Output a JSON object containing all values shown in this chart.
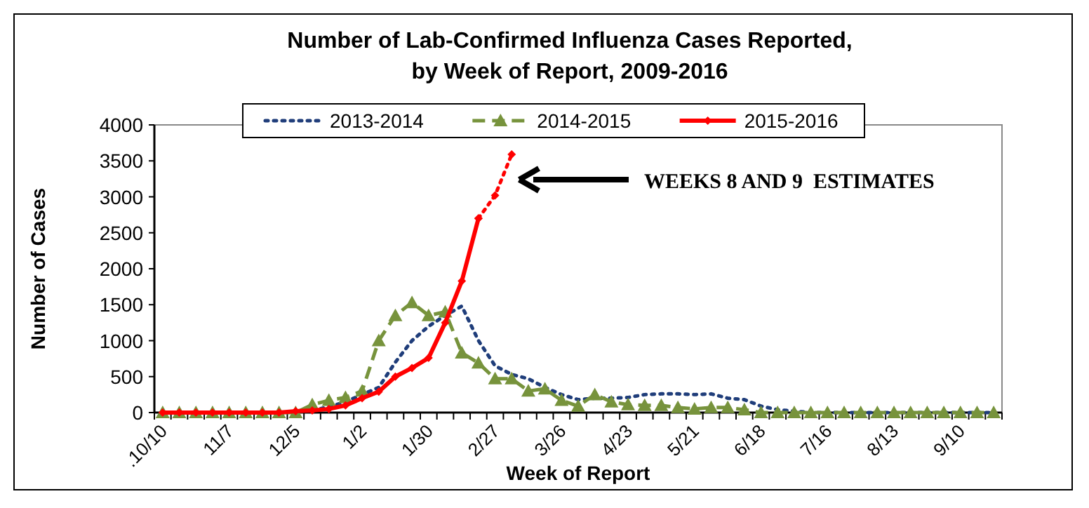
{
  "chart_data": {
    "type": "line",
    "title": "Number of Lab-Confirmed Influenza Cases Reported,\nby Week of Report, 2009-2016",
    "xlabel": "Week of Report",
    "ylabel": "Number of Cases",
    "categories": [
      ".10/10",
      null,
      null,
      null,
      "11/7",
      null,
      null,
      null,
      "12/5",
      null,
      null,
      null,
      "1/2",
      null,
      null,
      null,
      "1/30",
      null,
      null,
      null,
      "2/27",
      null,
      null,
      null,
      "3/26",
      null,
      null,
      null,
      "4/23",
      null,
      null,
      null,
      "5/21",
      null,
      null,
      null,
      "6/18",
      null,
      null,
      null,
      "7/16",
      null,
      null,
      null,
      "8/13",
      null,
      null,
      null,
      "9/10",
      null,
      null
    ],
    "ylim": [
      0,
      4000
    ],
    "yticks": [
      0,
      500,
      1000,
      1500,
      2000,
      2500,
      3000,
      3500,
      4000
    ],
    "grid": false,
    "legend": "top",
    "series": [
      {
        "name": "2013-2014",
        "color": "#1f3d7a",
        "line_style": "dotted",
        "marker": "none",
        "values": [
          null,
          null,
          null,
          null,
          null,
          null,
          null,
          null,
          20,
          30,
          80,
          150,
          250,
          350,
          700,
          1000,
          1200,
          1350,
          1480,
          1000,
          650,
          530,
          470,
          350,
          250,
          180,
          200,
          200,
          210,
          250,
          260,
          260,
          250,
          260,
          200,
          180,
          90,
          40,
          20,
          0,
          0,
          0,
          0,
          0,
          0,
          0,
          0,
          0,
          0,
          0,
          0
        ]
      },
      {
        "name": "2014-2015",
        "color": "#77933c",
        "line_style": "dashed",
        "marker": "triangle",
        "values": [
          0,
          0,
          0,
          0,
          0,
          0,
          0,
          0,
          0,
          110,
          170,
          210,
          300,
          1000,
          1350,
          1530,
          1350,
          1400,
          830,
          690,
          470,
          470,
          300,
          330,
          170,
          90,
          250,
          150,
          110,
          100,
          100,
          70,
          50,
          70,
          70,
          40,
          0,
          0,
          0,
          0,
          0,
          0,
          0,
          0,
          0,
          0,
          0,
          0,
          0,
          0,
          0
        ]
      },
      {
        "name": "2015-2016",
        "color": "#ff0000",
        "line_style": "solid",
        "marker": "diamond",
        "values": [
          0,
          0,
          0,
          0,
          0,
          0,
          0,
          0,
          20,
          30,
          50,
          100,
          200,
          290,
          500,
          620,
          760,
          1250,
          1830,
          2700,
          null,
          null,
          null,
          null,
          null,
          null,
          null,
          null,
          null,
          null,
          null,
          null,
          null,
          null,
          null,
          null,
          null,
          null,
          null,
          null,
          null,
          null,
          null,
          null,
          null,
          null,
          null,
          null,
          null,
          null,
          null
        ]
      },
      {
        "color": "#ff0000",
        "line_style": "dotted",
        "marker": "diamond",
        "values": [
          null,
          null,
          null,
          null,
          null,
          null,
          null,
          null,
          null,
          null,
          null,
          null,
          null,
          null,
          null,
          null,
          null,
          null,
          null,
          2700,
          3020,
          3590,
          null,
          null,
          null,
          null,
          null,
          null,
          null,
          null,
          null,
          null,
          null,
          null,
          null,
          null,
          null,
          null,
          null,
          null,
          null,
          null,
          null,
          null,
          null,
          null,
          null,
          null,
          null,
          null,
          null
        ]
      }
    ],
    "annotations": [
      "WEEKS 8 AND 9  ESTIMATES"
    ]
  }
}
